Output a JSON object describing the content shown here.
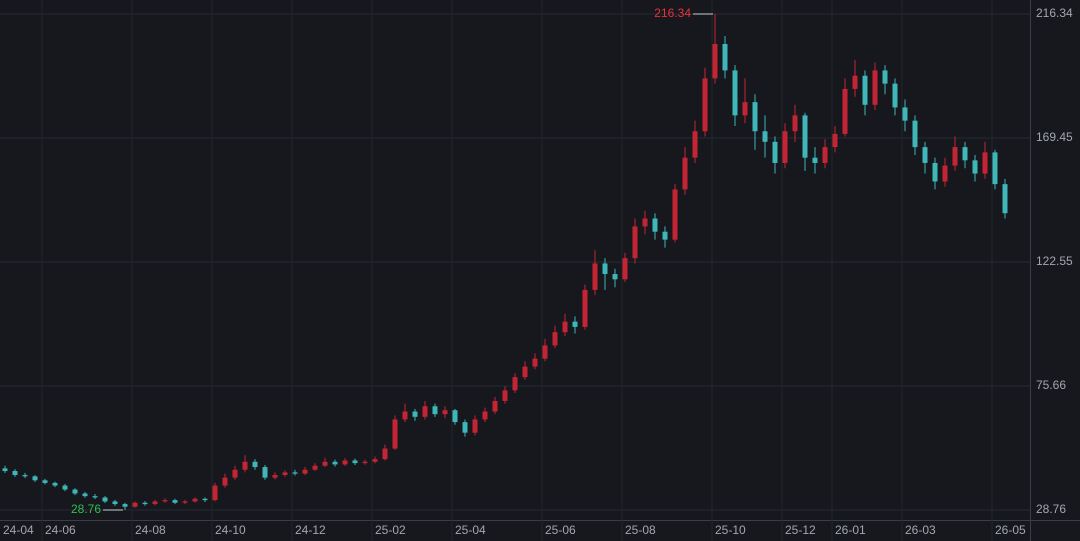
{
  "chart_data": {
    "type": "candlestick",
    "categories": [
      null,
      null,
      null,
      null,
      "24-06",
      null,
      null,
      null,
      null,
      null,
      null,
      null,
      null,
      "24-08",
      null,
      null,
      null,
      null,
      null,
      null,
      null,
      "24-10",
      null,
      null,
      null,
      null,
      null,
      null,
      null,
      "24-12",
      null,
      null,
      null,
      null,
      null,
      null,
      null,
      "25-02",
      null,
      null,
      null,
      null,
      null,
      null,
      null,
      "25-04",
      null,
      null,
      null,
      null,
      null,
      null,
      null,
      null,
      "25-06",
      null,
      null,
      null,
      null,
      null,
      null,
      null,
      "25-08",
      null,
      null,
      null,
      null,
      null,
      null,
      null,
      null,
      "25-10",
      null,
      null,
      null,
      null,
      null,
      null,
      "25-12",
      null,
      null,
      null,
      null,
      "26-01",
      null,
      null,
      null,
      null,
      null,
      null,
      "26-03",
      null,
      null,
      null,
      null,
      null,
      null,
      null,
      null,
      "26-05",
      null
    ],
    "first_label": "24-04",
    "open": [
      44.5,
      43.5,
      42.0,
      41.5,
      40.0,
      39.0,
      38.0,
      36.5,
      35.0,
      34.0,
      33.5,
      32.0,
      31.0,
      30.0,
      31.5,
      31.0,
      32.0,
      32.5,
      31.5,
      32.0,
      33.0,
      32.5,
      38.0,
      41.0,
      44.0,
      47.0,
      45.0,
      41.0,
      42.0,
      43.0,
      42.5,
      44.0,
      45.5,
      47.0,
      46.0,
      47.5,
      46.5,
      47.0,
      48.0,
      52.0,
      63.0,
      66.0,
      64.0,
      68.0,
      65.0,
      66.5,
      62.0,
      58.0,
      63.0,
      66.0,
      70.0,
      74.0,
      79.0,
      83.0,
      86.0,
      91.0,
      96.0,
      100.0,
      98.0,
      112.0,
      122.0,
      118.0,
      116.0,
      124.0,
      136.0,
      139.0,
      134.0,
      131.0,
      150.0,
      162.0,
      172.0,
      192.0,
      205.0,
      195.0,
      178.0,
      183.0,
      172.0,
      168.0,
      160.0,
      172.0,
      178.0,
      162.0,
      160.0,
      166.0,
      171.0,
      188.0,
      193.0,
      182.0,
      195.0,
      190.0,
      181.0,
      176.0,
      166.0,
      160.0,
      153.0,
      159.0,
      166.0,
      161.0,
      156.0,
      164.0,
      152.0
    ],
    "high": [
      45.5,
      44.2,
      42.8,
      42.0,
      40.6,
      39.5,
      38.6,
      37.0,
      35.6,
      34.8,
      34.0,
      32.6,
      31.5,
      32.0,
      32.1,
      32.6,
      33.2,
      33.0,
      32.6,
      33.6,
      33.5,
      39.0,
      42.5,
      45.5,
      49.5,
      48.0,
      45.8,
      43.0,
      43.8,
      44.0,
      45.0,
      46.5,
      48.5,
      47.8,
      48.4,
      48.2,
      47.8,
      49.0,
      53.5,
      64.5,
      69.0,
      67.0,
      70.0,
      69.0,
      68.0,
      67.0,
      63.0,
      64.5,
      67.5,
      71.5,
      75.5,
      80.5,
      85.0,
      88.0,
      93.5,
      98.5,
      103.0,
      102.0,
      114.0,
      127.0,
      124.0,
      120.0,
      126.0,
      139.0,
      142.0,
      141.0,
      136.0,
      152.0,
      166.0,
      176.0,
      196.0,
      216.34,
      208.0,
      197.0,
      192.0,
      186.0,
      178.0,
      170.0,
      175.0,
      182.0,
      179.0,
      166.0,
      169.0,
      174.0,
      192.0,
      199.0,
      195.0,
      198.0,
      197.0,
      192.0,
      184.0,
      178.0,
      168.0,
      162.0,
      162.0,
      170.0,
      168.0,
      163.0,
      168.0,
      165.0,
      154.0
    ],
    "low": [
      42.8,
      41.3,
      40.8,
      39.4,
      38.4,
      37.4,
      35.9,
      34.4,
      33.4,
      32.9,
      31.4,
      30.3,
      28.76,
      29.6,
      30.4,
      30.5,
      31.5,
      31.0,
      31.0,
      31.6,
      31.8,
      32.0,
      37.2,
      40.2,
      43.0,
      44.0,
      40.2,
      40.3,
      41.4,
      41.8,
      42.0,
      43.5,
      45.0,
      45.2,
      45.4,
      45.8,
      45.9,
      46.4,
      47.5,
      51.5,
      62.0,
      62.5,
      63.0,
      64.0,
      63.5,
      61.0,
      56.5,
      57.0,
      62.0,
      65.0,
      69.0,
      73.0,
      78.0,
      82.0,
      85.0,
      90.0,
      94.5,
      95.5,
      97.0,
      110.0,
      112.0,
      113.0,
      115.0,
      122.0,
      133.0,
      131.0,
      128.0,
      130.0,
      148.0,
      160.0,
      170.0,
      190.0,
      192.0,
      174.0,
      175.0,
      165.0,
      162.0,
      156.0,
      158.0,
      168.0,
      157.0,
      156.0,
      158.0,
      164.0,
      170.0,
      185.0,
      178.0,
      180.0,
      186.0,
      178.0,
      172.0,
      163.0,
      156.0,
      150.0,
      151.0,
      157.0,
      158.0,
      153.0,
      154.0,
      150.0,
      139.0
    ],
    "close": [
      43.5,
      42.0,
      41.5,
      40.0,
      39.0,
      38.0,
      36.5,
      35.0,
      34.0,
      33.5,
      32.0,
      31.0,
      30.0,
      31.5,
      31.0,
      32.0,
      32.5,
      31.5,
      32.0,
      33.0,
      32.5,
      38.0,
      41.0,
      44.0,
      47.0,
      45.0,
      41.0,
      42.0,
      43.0,
      42.5,
      44.0,
      45.5,
      47.0,
      46.0,
      47.5,
      46.5,
      47.0,
      48.0,
      52.0,
      63.0,
      66.0,
      64.0,
      68.0,
      65.0,
      66.5,
      62.0,
      58.0,
      63.0,
      66.0,
      70.0,
      74.0,
      79.0,
      83.0,
      86.0,
      91.0,
      96.0,
      100.0,
      98.0,
      112.0,
      122.0,
      118.0,
      116.0,
      124.0,
      136.0,
      139.0,
      134.0,
      131.0,
      150.0,
      162.0,
      172.0,
      192.0,
      205.0,
      195.0,
      178.0,
      183.0,
      172.0,
      168.0,
      160.0,
      172.0,
      178.0,
      162.0,
      160.0,
      166.0,
      171.0,
      188.0,
      193.0,
      182.0,
      195.0,
      190.0,
      181.0,
      176.0,
      166.0,
      160.0,
      153.0,
      159.0,
      166.0,
      161.0,
      156.0,
      164.0,
      152.0,
      141.0
    ],
    "up_color": "#c42534",
    "down_color": "#3fb6b8",
    "ylim": [
      24.98,
      221.63
    ],
    "yticks": [
      28.76,
      75.66,
      122.55,
      169.45,
      216.34
    ],
    "grid": true,
    "annotations": {
      "high": 216.34,
      "high_color": "#e8323c",
      "low": 28.76,
      "low_color": "#2fbf4f"
    }
  }
}
